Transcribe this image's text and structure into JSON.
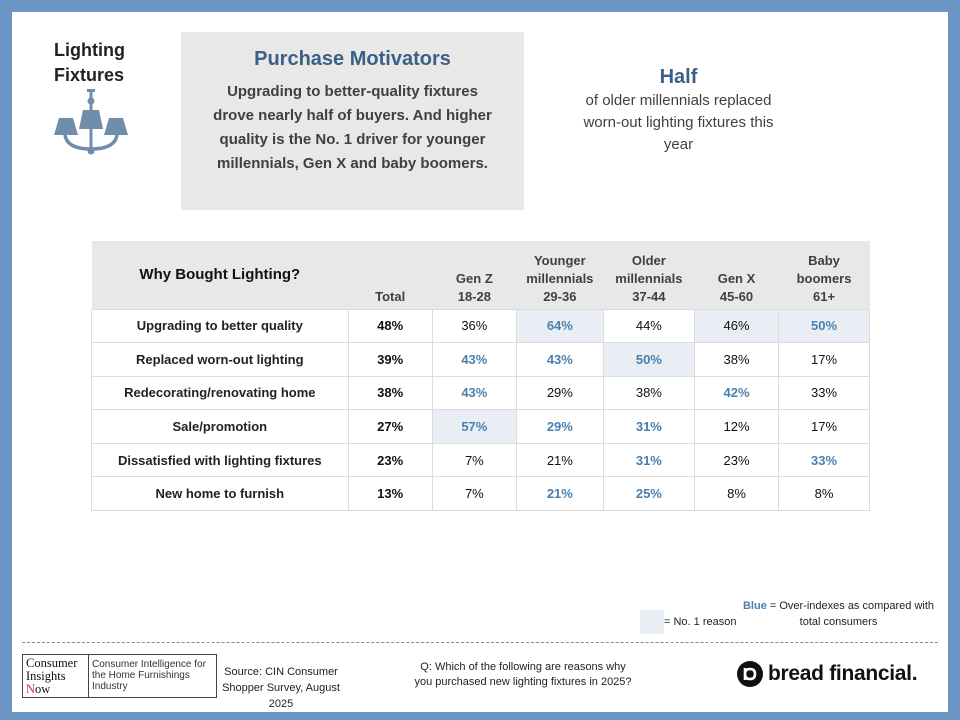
{
  "topic": "Lighting Fixtures",
  "icon": "chandelier-icon",
  "colors": {
    "frame": "#6b95c2",
    "title_blue": "#3b5f85",
    "over_index_blue": "#4a80b0",
    "no1_highlight": "#e9eef5",
    "panel_gray": "#e8e8e8"
  },
  "motivators": {
    "title": "Purchase Motivators",
    "body": "Upgrading to better-quality fixtures drove nearly half of buyers. And higher quality is the No. 1 driver for younger millennials, Gen X and baby boomers."
  },
  "callout": {
    "big": "Half",
    "small": "of older millennials replaced worn-out lighting fixtures this year"
  },
  "table": {
    "title": "Why Bought Lighting?",
    "columns": [
      {
        "line1": "",
        "line2": "Total"
      },
      {
        "line1": "Gen Z",
        "line2": "18-28"
      },
      {
        "line1": "Younger millennials",
        "line2": "29-36"
      },
      {
        "line1": "Older millennials",
        "line2": "37-44"
      },
      {
        "line1": "Gen X",
        "line2": "45-60"
      },
      {
        "line1": "Baby boomers",
        "line2": "61+"
      }
    ],
    "rows": [
      {
        "label": "Upgrading to better quality",
        "cells": [
          {
            "v": "48%",
            "over": false,
            "top": false
          },
          {
            "v": "36%",
            "over": false,
            "top": false
          },
          {
            "v": "64%",
            "over": true,
            "top": true
          },
          {
            "v": "44%",
            "over": false,
            "top": false
          },
          {
            "v": "46%",
            "over": false,
            "top": true
          },
          {
            "v": "50%",
            "over": true,
            "top": true
          }
        ]
      },
      {
        "label": "Replaced worn-out lighting",
        "cells": [
          {
            "v": "39%",
            "over": false,
            "top": false
          },
          {
            "v": "43%",
            "over": true,
            "top": false
          },
          {
            "v": "43%",
            "over": true,
            "top": false
          },
          {
            "v": "50%",
            "over": true,
            "top": true
          },
          {
            "v": "38%",
            "over": false,
            "top": false
          },
          {
            "v": "17%",
            "over": false,
            "top": false
          }
        ]
      },
      {
        "label": "Redecorating/renovating home",
        "cells": [
          {
            "v": "38%",
            "over": false,
            "top": false
          },
          {
            "v": "43%",
            "over": true,
            "top": false
          },
          {
            "v": "29%",
            "over": false,
            "top": false
          },
          {
            "v": "38%",
            "over": false,
            "top": false
          },
          {
            "v": "42%",
            "over": true,
            "top": false
          },
          {
            "v": "33%",
            "over": false,
            "top": false
          }
        ]
      },
      {
        "label": "Sale/promotion",
        "cells": [
          {
            "v": "27%",
            "over": false,
            "top": false
          },
          {
            "v": "57%",
            "over": true,
            "top": true
          },
          {
            "v": "29%",
            "over": true,
            "top": false
          },
          {
            "v": "31%",
            "over": true,
            "top": false
          },
          {
            "v": "12%",
            "over": false,
            "top": false
          },
          {
            "v": "17%",
            "over": false,
            "top": false
          }
        ]
      },
      {
        "label": "Dissatisfied with lighting fixtures",
        "cells": [
          {
            "v": "23%",
            "over": false,
            "top": false
          },
          {
            "v": "7%",
            "over": false,
            "top": false
          },
          {
            "v": "21%",
            "over": false,
            "top": false
          },
          {
            "v": "31%",
            "over": true,
            "top": false
          },
          {
            "v": "23%",
            "over": false,
            "top": false
          },
          {
            "v": "33%",
            "over": true,
            "top": false
          }
        ]
      },
      {
        "label": "New home to furnish",
        "cells": [
          {
            "v": "13%",
            "over": false,
            "top": false
          },
          {
            "v": "7%",
            "over": false,
            "top": false
          },
          {
            "v": "21%",
            "over": true,
            "top": false
          },
          {
            "v": "25%",
            "over": true,
            "top": false
          },
          {
            "v": "8%",
            "over": false,
            "top": false
          },
          {
            "v": "8%",
            "over": false,
            "top": false
          }
        ]
      }
    ]
  },
  "legend": {
    "blue_word": "Blue",
    "blue_rest": " = Over-indexes as compared with total consumers",
    "no1": "= No. 1 reason"
  },
  "footer": {
    "cin_logo": {
      "line1": "Consumer",
      "line2": "Insights",
      "n_letter": "N",
      "line3_rest": "ow",
      "right": "Consumer Intelligence for the Home Furnishings Industry"
    },
    "source": "Source: CIN Consumer Shopper Survey, August 2025",
    "question": "Q: Which of the following are reasons why you purchased new lighting fixtures in 2025?",
    "brand": "bread financial."
  }
}
